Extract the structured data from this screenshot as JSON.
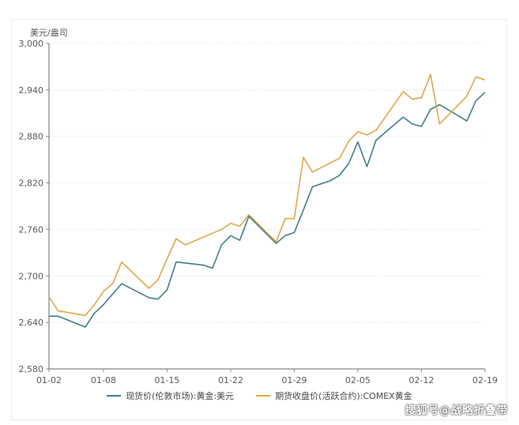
{
  "chart_data": {
    "type": "line",
    "unit_label": "美元/盎司",
    "ylim": [
      2580,
      3000
    ],
    "y_ticks": [
      "3,000",
      "2,940",
      "2,880",
      "2,820",
      "2,760",
      "2,700",
      "2,640",
      "2,580"
    ],
    "y_tick_values": [
      3000,
      2940,
      2880,
      2820,
      2760,
      2700,
      2640,
      2580
    ],
    "x_tick_labels": [
      "01-02",
      "01-08",
      "01-15",
      "01-22",
      "01-29",
      "02-05",
      "02-12",
      "02-19"
    ],
    "x_tick_days": [
      2,
      8,
      15,
      22,
      29,
      36,
      43,
      50
    ],
    "grid": true,
    "legend_position": "bottom",
    "series": [
      {
        "name": "现货价(伦敦市场):黄金:美元",
        "color": "#3a7a8c",
        "days": [
          2,
          3,
          6,
          7,
          8,
          10,
          13,
          14,
          15,
          16,
          19,
          20,
          21,
          22,
          23,
          24,
          27,
          28,
          29,
          30,
          31,
          33,
          34,
          35,
          36,
          37,
          38,
          41,
          42,
          43,
          44,
          45,
          48,
          49,
          50
        ],
        "values": [
          2648,
          2648,
          2634,
          2652,
          2663,
          2690,
          2672,
          2670,
          2682,
          2718,
          2714,
          2710,
          2740,
          2752,
          2746,
          2777,
          2742,
          2752,
          2756,
          2785,
          2815,
          2823,
          2830,
          2845,
          2873,
          2841,
          2875,
          2905,
          2896,
          2893,
          2915,
          2921,
          2900,
          2926,
          2937
        ]
      },
      {
        "name": "期货收盘价(活跃合约):COMEX黄金",
        "color": "#e0a545",
        "days": [
          2,
          3,
          6,
          7,
          8,
          9,
          10,
          13,
          14,
          15,
          16,
          17,
          20,
          21,
          22,
          23,
          24,
          27,
          28,
          29,
          30,
          31,
          34,
          35,
          36,
          37,
          38,
          41,
          42,
          43,
          44,
          45,
          48,
          49,
          50
        ],
        "values": [
          2673,
          2655,
          2649,
          2663,
          2680,
          2690,
          2718,
          2684,
          2695,
          2722,
          2748,
          2740,
          2755,
          2760,
          2768,
          2764,
          2779,
          2744,
          2774,
          2774,
          2853,
          2834,
          2852,
          2874,
          2886,
          2882,
          2888,
          2938,
          2928,
          2930,
          2960,
          2896,
          2932,
          2957,
          2953
        ]
      }
    ]
  },
  "watermark": "搜狐号@战略折叠带"
}
